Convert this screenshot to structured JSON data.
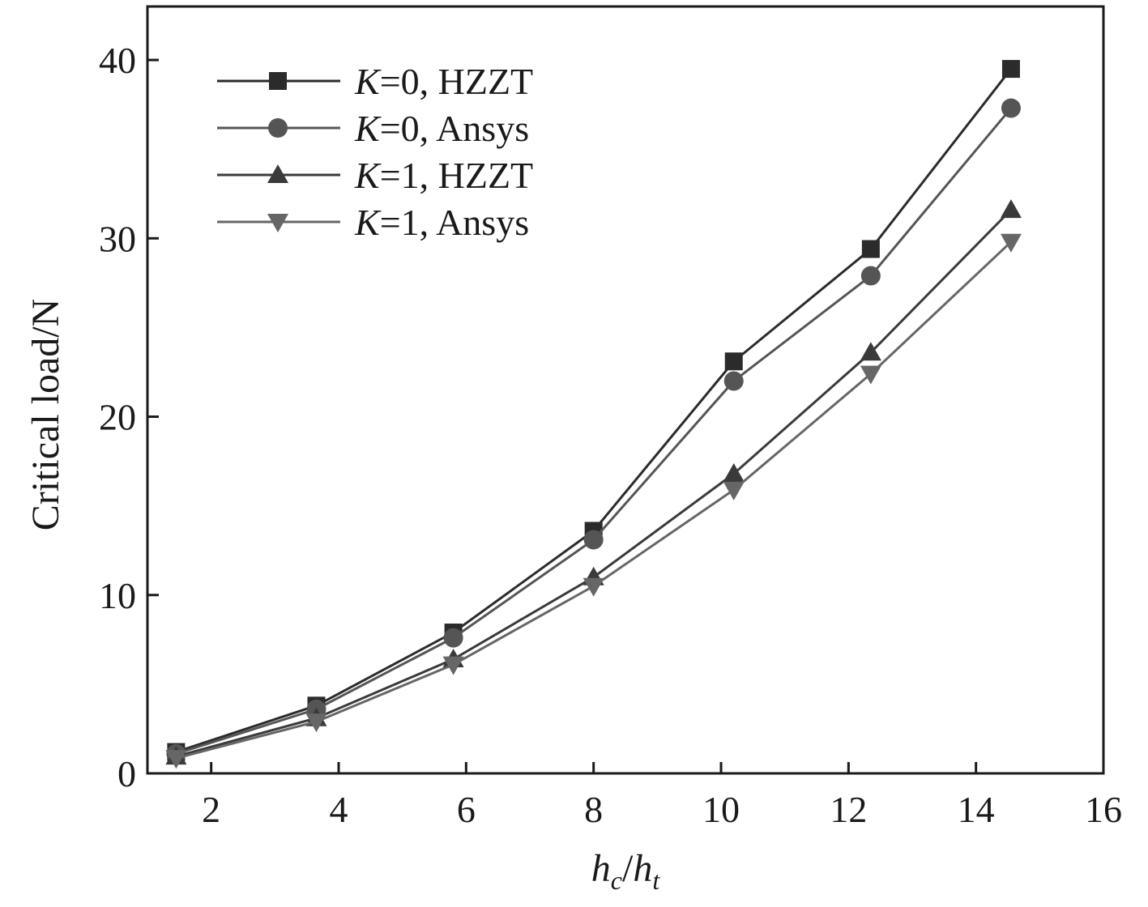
{
  "chart_data": {
    "type": "line",
    "title": "",
    "xlabel": {
      "main": "h",
      "sub_c": "c",
      "slash": "/",
      "main2": "h",
      "sub_t": "t"
    },
    "ylabel": "Critical load/N",
    "xlim": [
      1,
      16
    ],
    "ylim": [
      0,
      43
    ],
    "xticks": [
      2,
      4,
      6,
      8,
      10,
      12,
      14,
      16
    ],
    "yticks": [
      0,
      10,
      20,
      30,
      40
    ],
    "xtick_labels": [
      "2",
      "4",
      "6",
      "8",
      "10",
      "12",
      "14",
      "16"
    ],
    "ytick_labels": [
      "0",
      "10",
      "20",
      "30",
      "40"
    ],
    "grid": false,
    "legend_position": "top-left",
    "x": [
      1.45,
      3.65,
      5.8,
      8.0,
      10.2,
      12.35,
      14.55
    ],
    "series": [
      {
        "name": "K=0, HZZT",
        "legend_italic": "K",
        "legend_rest": "=0, HZZT",
        "marker": "square",
        "color": "#2b2b2b",
        "values": [
          1.2,
          3.8,
          7.9,
          13.6,
          23.1,
          29.4,
          39.5
        ]
      },
      {
        "name": "K=0, Ansys",
        "legend_italic": "K",
        "legend_rest": "=0, Ansys",
        "marker": "circle",
        "color": "#555555",
        "values": [
          1.1,
          3.6,
          7.6,
          13.1,
          22.0,
          27.9,
          37.3
        ]
      },
      {
        "name": "K=1, HZZT",
        "legend_italic": "K",
        "legend_rest": "=1, HZZT",
        "marker": "triangle-up",
        "color": "#3a3a3a",
        "values": [
          0.95,
          3.1,
          6.4,
          11.0,
          16.8,
          23.6,
          31.6
        ]
      },
      {
        "name": "K=1, Ansys",
        "legend_italic": "K",
        "legend_rest": "=1, Ansys",
        "marker": "triangle-down",
        "color": "#666666",
        "values": [
          0.85,
          2.9,
          6.1,
          10.5,
          15.9,
          22.4,
          29.8
        ]
      }
    ]
  }
}
